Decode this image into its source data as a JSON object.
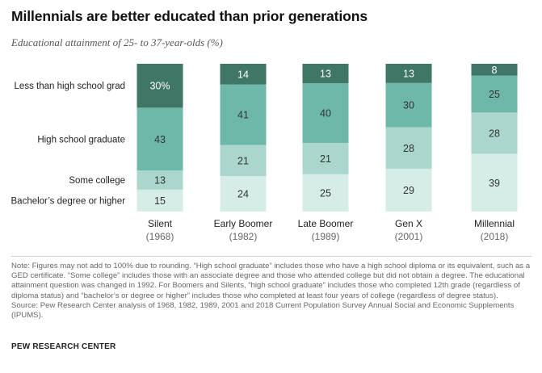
{
  "title": "Millennials are better educated than prior generations",
  "subtitle": "Educational attainment of 25- to 37-year-olds (%)",
  "chart_data": {
    "type": "bar",
    "stacked": true,
    "unit": "%",
    "categories": [
      "Silent",
      "Early Boomer",
      "Late Boomer",
      "Gen X",
      "Millennial"
    ],
    "category_years": [
      "(1968)",
      "(1982)",
      "(1989)",
      "(2001)",
      "(2018)"
    ],
    "series": [
      {
        "name": "Bachelor’s degree or higher",
        "color": "#d6ece6",
        "values": [
          15,
          24,
          25,
          29,
          39
        ]
      },
      {
        "name": "Some college",
        "color": "#aad6cc",
        "values": [
          13,
          21,
          21,
          28,
          28
        ]
      },
      {
        "name": "High school graduate",
        "color": "#6db8a8",
        "values": [
          43,
          41,
          40,
          30,
          25
        ]
      },
      {
        "name": "Less than high school grad",
        "color": "#3f7666",
        "values": [
          30,
          14,
          13,
          13,
          8
        ]
      }
    ],
    "data_labels": [
      [
        "15",
        "24",
        "25",
        "29",
        "39"
      ],
      [
        "13",
        "21",
        "21",
        "28",
        "28"
      ],
      [
        "43",
        "41",
        "40",
        "30",
        "25"
      ],
      [
        "30%",
        "14",
        "13",
        "13",
        "8"
      ]
    ],
    "legend_placement": "left"
  },
  "note": "Note: Figures may not add to 100% due to rounding. “High school graduate” includes those who have a high school diploma or its equivalent, such as a GED certificate. “Some college” includes those with an associate degree and those who attended college but did not obtain a degree. The educational attainment question was changed in 1992. For Boomers and Silents, “high school graduate” includes those who completed 12th grade (regardless of diploma status) and “bachelor’s or degree or higher” includes those who completed at least four years of college (regardless of degree status).",
  "source": "Source: Pew Research Center analysis of 1968, 1982, 1989, 2001 and 2018 Current Population Survey Annual Social and Economic Supplements (IPUMS).",
  "brand": "PEW RESEARCH CENTER"
}
